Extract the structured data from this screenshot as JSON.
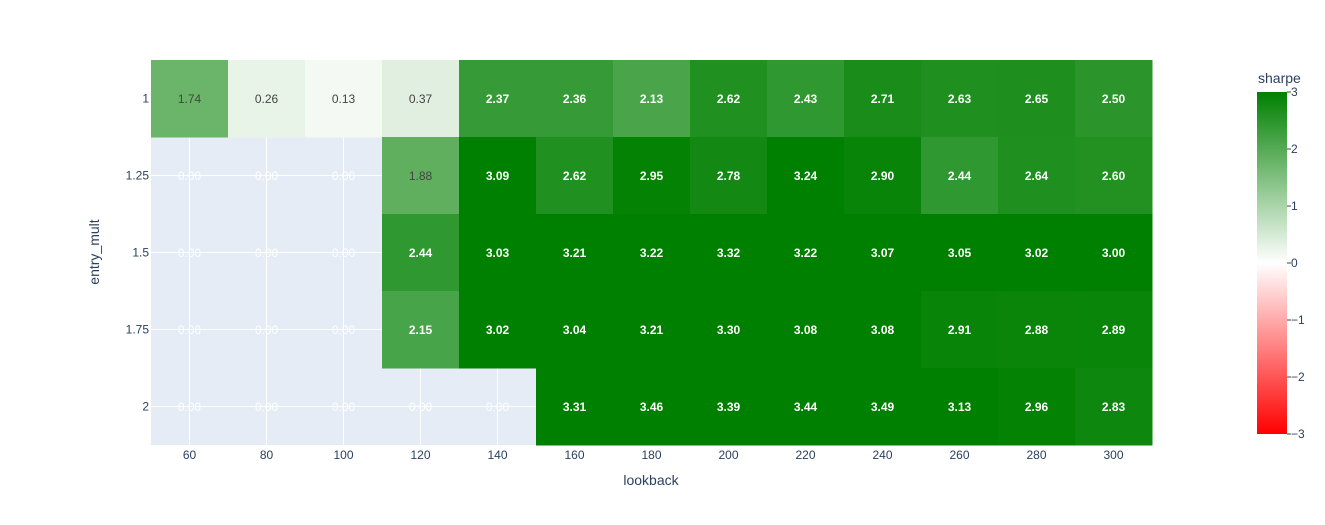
{
  "chart_data": {
    "type": "heatmap",
    "xlabel": "lookback",
    "ylabel": "entry_mult",
    "x": [
      "60",
      "80",
      "100",
      "120",
      "140",
      "160",
      "180",
      "200",
      "220",
      "240",
      "260",
      "280",
      "300"
    ],
    "y": [
      "1",
      "1.25",
      "1.5",
      "1.75",
      "2"
    ],
    "z": [
      [
        1.74,
        0.26,
        0.13,
        0.37,
        2.37,
        2.36,
        2.13,
        2.62,
        2.43,
        2.71,
        2.63,
        2.65,
        2.5
      ],
      [
        null,
        null,
        null,
        1.88,
        3.09,
        2.62,
        2.95,
        2.78,
        3.24,
        2.9,
        2.44,
        2.64,
        2.6
      ],
      [
        null,
        null,
        null,
        2.44,
        3.03,
        3.21,
        3.22,
        3.32,
        3.22,
        3.07,
        3.05,
        3.02,
        3.0
      ],
      [
        null,
        null,
        null,
        2.15,
        3.02,
        3.04,
        3.21,
        3.3,
        3.08,
        3.08,
        2.91,
        2.88,
        2.89
      ],
      [
        null,
        null,
        null,
        null,
        null,
        3.31,
        3.46,
        3.39,
        3.44,
        3.49,
        3.13,
        2.96,
        2.83
      ]
    ],
    "text": [
      [
        "1.74",
        "0.26",
        "0.13",
        "0.37",
        "2.37",
        "2.36",
        "2.13",
        "2.62",
        "2.43",
        "2.71",
        "2.63",
        "2.65",
        "2.50"
      ],
      [
        "0.00",
        "0.00",
        "0.00",
        "1.88",
        "3.09",
        "2.62",
        "2.95",
        "2.78",
        "3.24",
        "2.90",
        "2.44",
        "2.64",
        "2.60"
      ],
      [
        "0.00",
        "0.00",
        "0.00",
        "2.44",
        "3.03",
        "3.21",
        "3.22",
        "3.32",
        "3.22",
        "3.07",
        "3.05",
        "3.02",
        "3.00"
      ],
      [
        "0.00",
        "0.00",
        "0.00",
        "2.15",
        "3.02",
        "3.04",
        "3.21",
        "3.30",
        "3.08",
        "3.08",
        "2.91",
        "2.88",
        "2.89"
      ],
      [
        "0.00",
        "0.00",
        "0.00",
        "0.00",
        "0.00",
        "3.31",
        "3.46",
        "3.39",
        "3.44",
        "3.49",
        "3.13",
        "2.96",
        "2.83"
      ]
    ],
    "colorbar": {
      "title": "sharpe",
      "range": [
        -3,
        3
      ],
      "ticks": [
        "3",
        "2",
        "1",
        "0",
        "−1",
        "−2",
        "−3"
      ],
      "tick_values": [
        3,
        2,
        1,
        0,
        -1,
        -2,
        -3
      ],
      "colorscale": [
        [
          0,
          "#ff0000"
        ],
        [
          0.5,
          "#ffffff"
        ],
        [
          1,
          "#008000"
        ]
      ]
    },
    "plot_background": "#e5ecf6",
    "grid": true
  }
}
